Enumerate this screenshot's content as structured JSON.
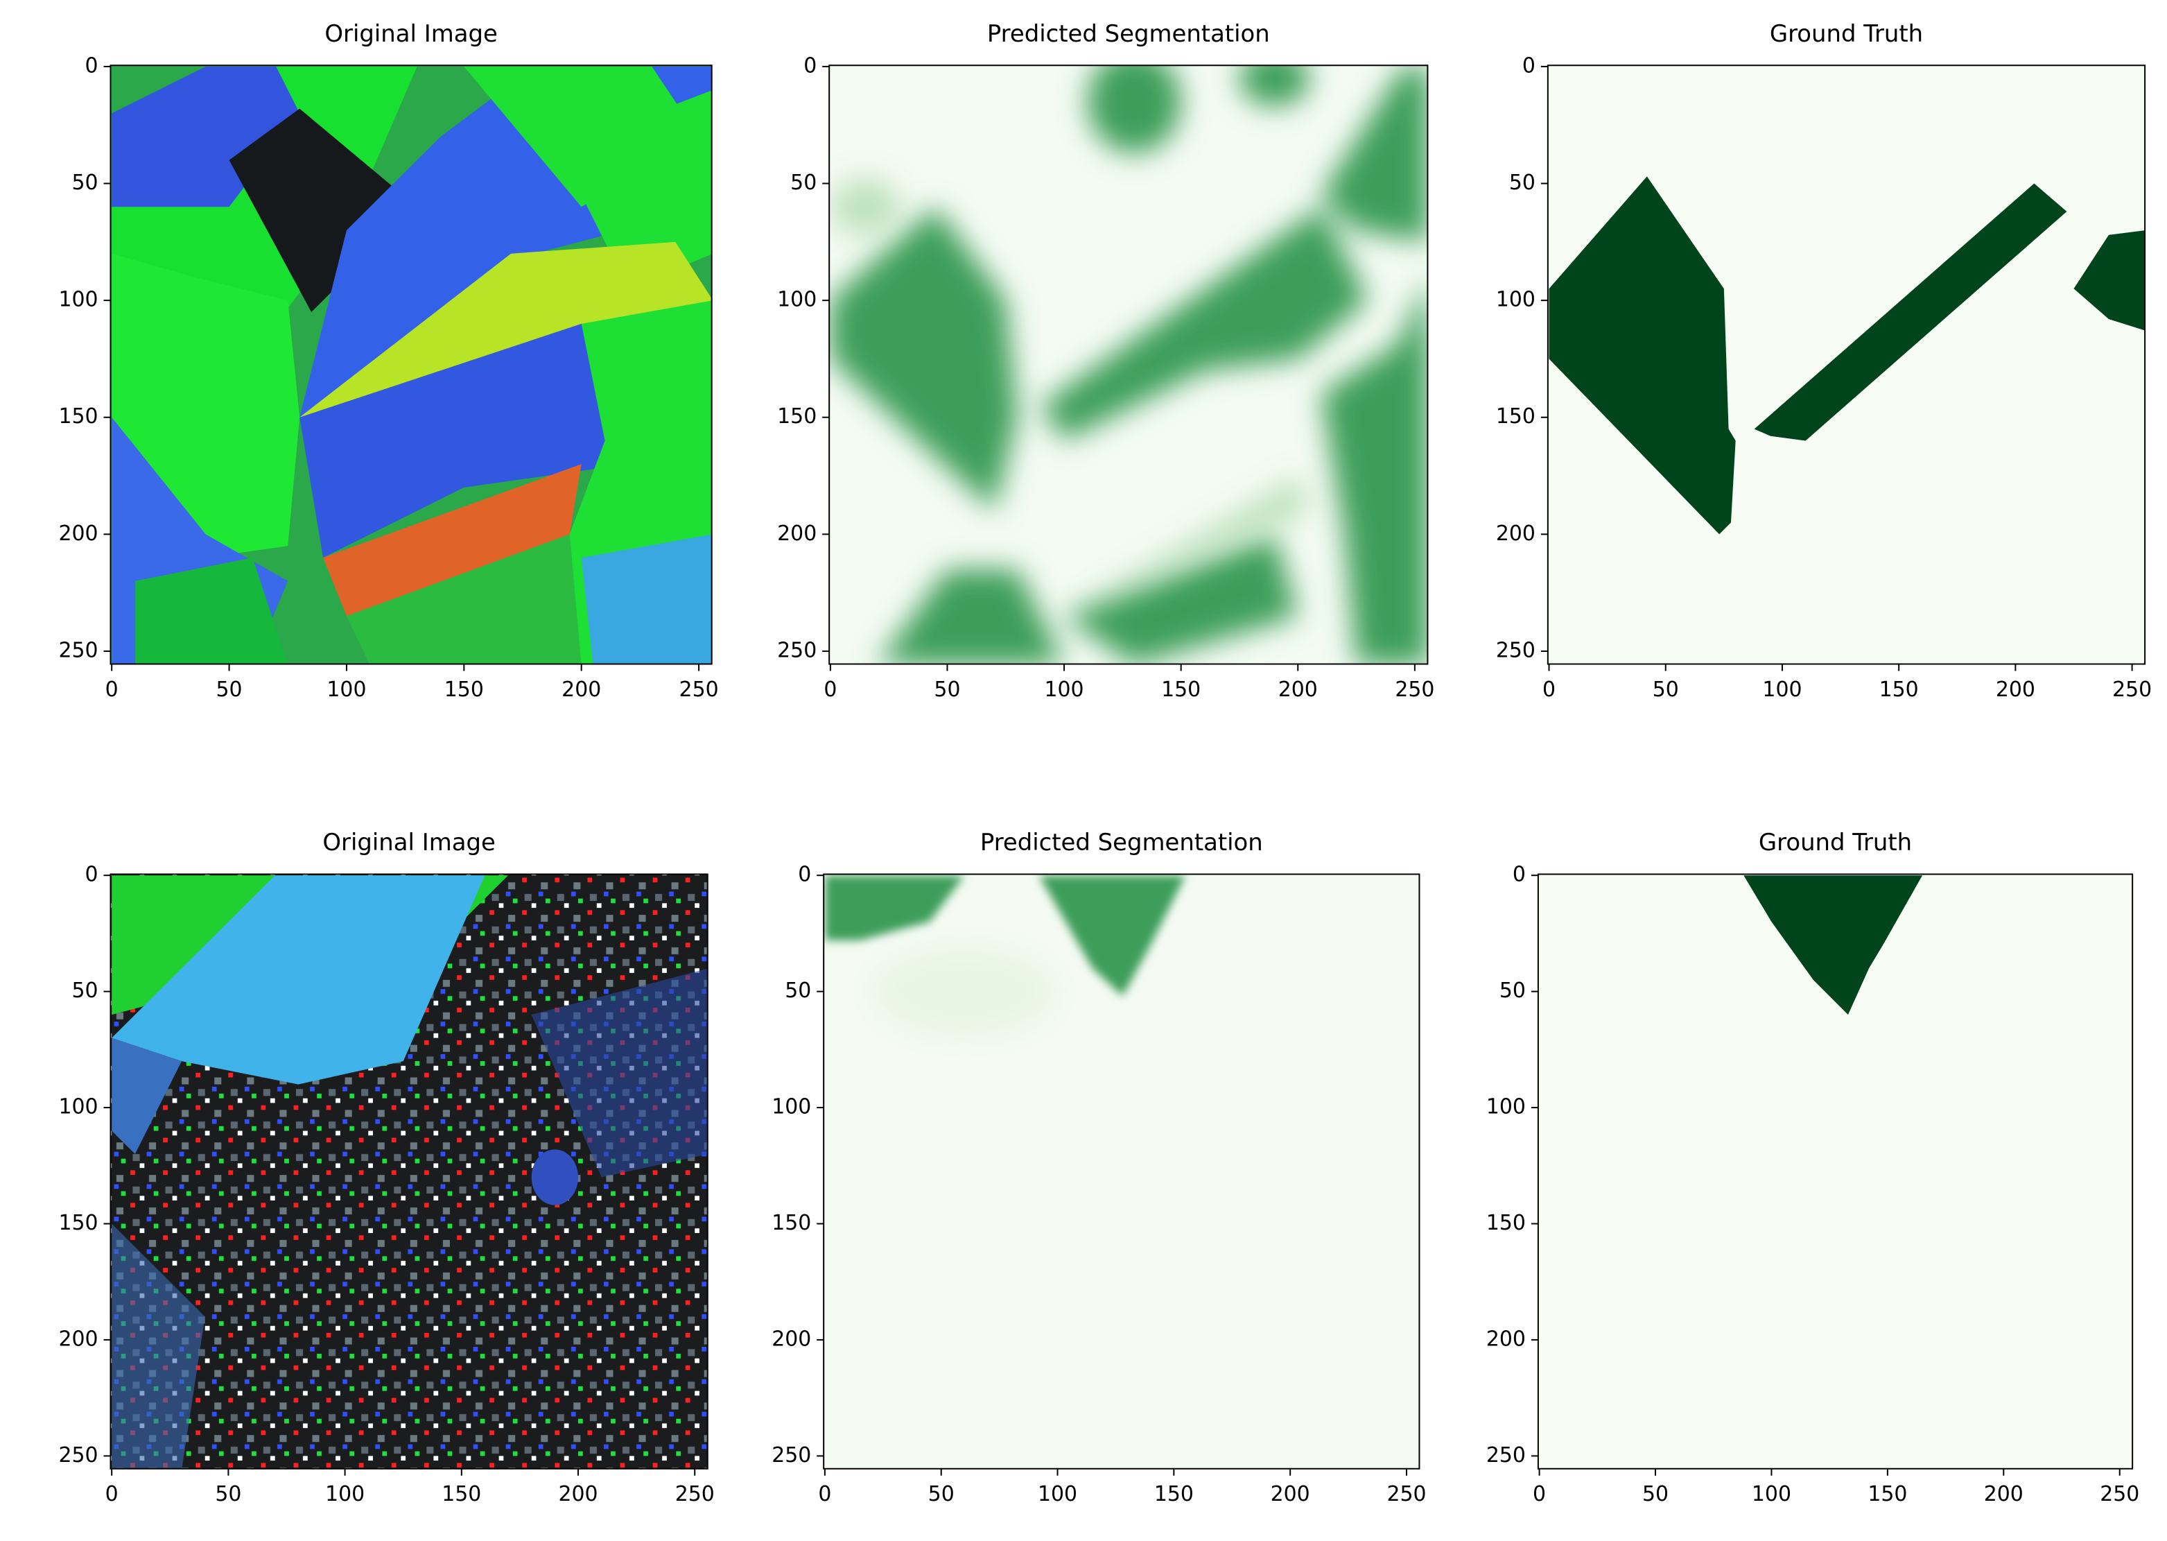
{
  "chart_data": [
    {
      "type": "image",
      "title": "Original Image",
      "xlim": [
        -0.5,
        255.5
      ],
      "ylim": [
        255.5,
        -0.5
      ],
      "xticks": [
        0,
        50,
        100,
        150,
        200,
        250
      ],
      "yticks": [
        0,
        50,
        100,
        150,
        200,
        250
      ]
    },
    {
      "type": "image",
      "title": "Predicted Segmentation",
      "xlim": [
        -0.5,
        255.5
      ],
      "ylim": [
        255.5,
        -0.5
      ],
      "xticks": [
        0,
        50,
        100,
        150,
        200,
        250
      ],
      "yticks": [
        0,
        50,
        100,
        150,
        200,
        250
      ]
    },
    {
      "type": "image",
      "title": "Ground Truth",
      "xlim": [
        -0.5,
        255.5
      ],
      "ylim": [
        255.5,
        -0.5
      ],
      "xticks": [
        0,
        50,
        100,
        150,
        200,
        250
      ],
      "yticks": [
        0,
        50,
        100,
        150,
        200,
        250
      ]
    },
    {
      "type": "image",
      "title": "Original Image",
      "xlim": [
        -0.5,
        255.5
      ],
      "ylim": [
        255.5,
        -0.5
      ],
      "xticks": [
        0,
        50,
        100,
        150,
        200,
        250
      ],
      "yticks": [
        0,
        50,
        100,
        150,
        200,
        250
      ]
    },
    {
      "type": "image",
      "title": "Predicted Segmentation",
      "xlim": [
        -0.5,
        255.5
      ],
      "ylim": [
        255.5,
        -0.5
      ],
      "xticks": [
        0,
        50,
        100,
        150,
        200,
        250
      ],
      "yticks": [
        0,
        50,
        100,
        150,
        200,
        250
      ]
    },
    {
      "type": "image",
      "title": "Ground Truth",
      "xlim": [
        -0.5,
        255.5
      ],
      "ylim": [
        255.5,
        -0.5
      ],
      "xticks": [
        0,
        50,
        100,
        150,
        200,
        250
      ],
      "yticks": [
        0,
        50,
        100,
        150,
        200,
        250
      ]
    }
  ]
}
